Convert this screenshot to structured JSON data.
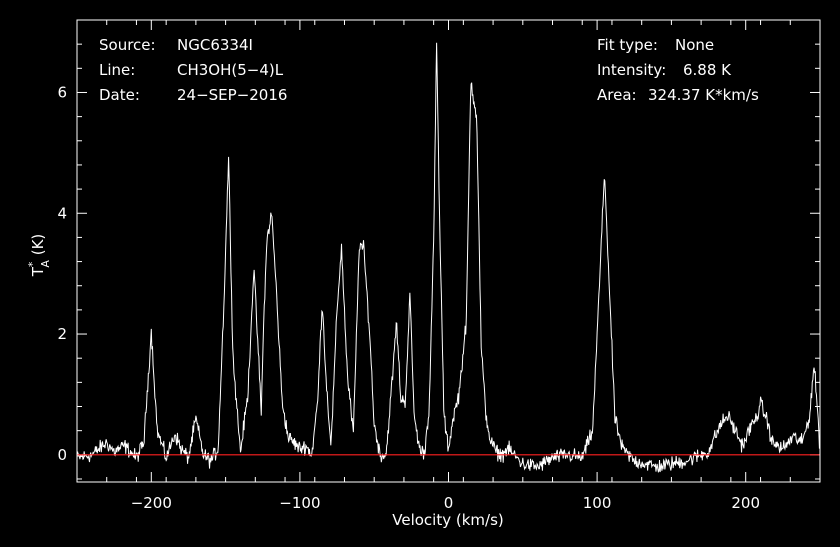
{
  "chart_data": {
    "type": "line",
    "title": "",
    "xlabel": "Velocity (km/s)",
    "ylabel_main": "T",
    "ylabel_sup": "*",
    "ylabel_sub": "A",
    "ylabel_unit": " (K)",
    "xlim": [
      -250,
      250
    ],
    "ylim": [
      -0.45,
      7.2
    ],
    "x_ticks": [
      -200,
      -100,
      0,
      100,
      200
    ],
    "x_tick_labels": [
      "−200",
      "−100",
      "0",
      "100",
      "200"
    ],
    "y_ticks": [
      0,
      2,
      4,
      6
    ],
    "y_tick_labels": [
      "0",
      "2",
      "4",
      "6"
    ],
    "grid": false,
    "baseline": 0,
    "colors": {
      "background": "#000000",
      "spectrum": "#ffffff",
      "baseline": "#ff2020",
      "axes": "#ffffff"
    },
    "series": [
      {
        "noise_sigma": 0.06,
        "x": [
          -250,
          -240,
          -230,
          -225,
          -218,
          -210,
          -205,
          -200,
          -196,
          -190,
          -184,
          -180,
          -175,
          -170,
          -165,
          -160,
          -155,
          -151,
          -148,
          -145,
          -140,
          -135,
          -131,
          -128,
          -126,
          -124,
          -122,
          -119,
          -116,
          -112,
          -108,
          -104,
          -100,
          -96,
          -92,
          -88,
          -85,
          -82,
          -79,
          -75,
          -72,
          -68,
          -64,
          -60,
          -57,
          -53,
          -50,
          -46,
          -42,
          -38,
          -35,
          -32,
          -29,
          -26,
          -23,
          -19,
          -16,
          -13,
          -10,
          -8,
          -6,
          -3,
          0,
          3,
          7,
          12,
          15,
          19,
          22,
          25,
          28,
          32,
          36,
          40,
          50,
          60,
          70,
          80,
          90,
          97,
          101,
          105,
          108,
          112,
          117,
          125,
          140,
          160,
          175,
          183,
          188,
          193,
          198,
          203,
          207,
          210,
          214,
          218,
          225,
          232,
          238,
          243,
          246,
          248,
          250
        ],
        "y": [
          -0.05,
          0.0,
          0.2,
          0.05,
          0.15,
          -0.05,
          0.2,
          2.05,
          0.4,
          -0.05,
          0.35,
          0.1,
          -0.05,
          0.6,
          0.0,
          -0.1,
          0.1,
          2.6,
          4.95,
          1.6,
          0.05,
          1.0,
          3.1,
          1.7,
          0.7,
          2.5,
          3.6,
          4.0,
          2.8,
          0.9,
          0.3,
          0.2,
          0.1,
          0.15,
          0.0,
          0.9,
          2.55,
          1.1,
          0.15,
          2.4,
          3.45,
          1.3,
          0.35,
          3.5,
          3.4,
          2.0,
          0.5,
          0.0,
          0.0,
          1.2,
          2.2,
          0.9,
          0.9,
          2.65,
          0.6,
          0.05,
          0.05,
          0.8,
          3.5,
          6.8,
          3.9,
          0.6,
          0.1,
          0.6,
          1.0,
          2.2,
          6.2,
          5.6,
          1.8,
          0.7,
          0.25,
          0.05,
          0.0,
          0.1,
          -0.15,
          -0.2,
          -0.05,
          0.0,
          -0.05,
          0.4,
          2.5,
          4.7,
          2.9,
          0.6,
          0.1,
          -0.1,
          -0.2,
          -0.1,
          0.05,
          0.5,
          0.65,
          0.4,
          0.15,
          0.45,
          0.6,
          0.85,
          0.6,
          0.2,
          0.1,
          0.3,
          0.2,
          0.65,
          1.5,
          0.85,
          0.1
        ]
      }
    ]
  },
  "header": {
    "source_key": "Source:",
    "source_val": "NGC6334I",
    "line_key": "Line:",
    "line_val": "CH3OH(5−4)L",
    "date_key": "Date:",
    "date_val": "24−SEP−2016",
    "fit_key": "Fit type:",
    "fit_val": "None",
    "intensity_key": "Intensity:",
    "intensity_val": "6.88 K",
    "area_key": "Area:",
    "area_val": "324.37 K*km/s"
  }
}
